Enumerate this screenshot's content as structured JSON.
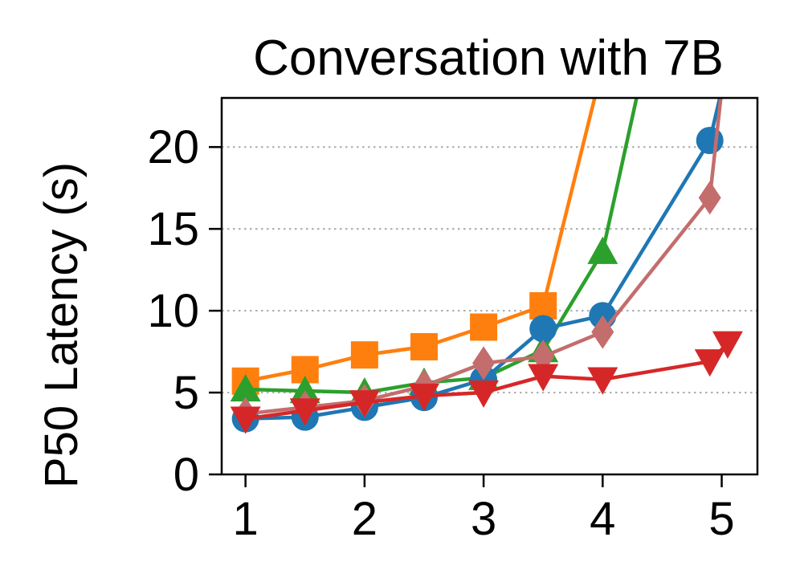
{
  "chart_data": {
    "type": "line",
    "title": "Conversation with 7B",
    "xlabel": "",
    "ylabel": "P50 Latency (s)",
    "xlim": [
      0.8,
      5.3
    ],
    "ylim": [
      0,
      23
    ],
    "xticks": [
      1,
      2,
      3,
      4,
      5
    ],
    "yticks": [
      0,
      5,
      10,
      15,
      20
    ],
    "grid": "horizontal-dotted",
    "series": [
      {
        "color": "#ff7f0e",
        "marker": "square",
        "points": [
          [
            1,
            5.7
          ],
          [
            1.5,
            6.4
          ],
          [
            2,
            7.3
          ],
          [
            2.5,
            7.8
          ],
          [
            3,
            9.0
          ],
          [
            3.5,
            10.3
          ],
          [
            3.95,
            23.5
          ]
        ]
      },
      {
        "color": "#2ca02c",
        "marker": "triangle-up",
        "points": [
          [
            1,
            5.2
          ],
          [
            1.5,
            5.1
          ],
          [
            2,
            5.0
          ],
          [
            2.5,
            5.6
          ],
          [
            3,
            5.9
          ],
          [
            3.5,
            7.6
          ],
          [
            4,
            13.6
          ],
          [
            4.3,
            23.5
          ]
        ]
      },
      {
        "color": "#1f77b4",
        "marker": "circle",
        "points": [
          [
            1,
            3.4
          ],
          [
            1.5,
            3.5
          ],
          [
            2,
            4.1
          ],
          [
            2.5,
            4.7
          ],
          [
            3,
            5.8
          ],
          [
            3.5,
            8.9
          ],
          [
            4,
            9.7
          ],
          [
            4.9,
            20.4
          ],
          [
            5.0,
            23.5
          ]
        ]
      },
      {
        "color": "#c46d6d",
        "marker": "thin-diamond",
        "points": [
          [
            1,
            3.7
          ],
          [
            1.5,
            4.1
          ],
          [
            2,
            4.5
          ],
          [
            2.5,
            5.4
          ],
          [
            3,
            6.8
          ],
          [
            3.5,
            7.2
          ],
          [
            4,
            8.7
          ],
          [
            4.9,
            16.9
          ],
          [
            5.0,
            23.5
          ]
        ]
      },
      {
        "color": "#d62728",
        "marker": "triangle-down",
        "points": [
          [
            1,
            3.4
          ],
          [
            1.5,
            3.9
          ],
          [
            2,
            4.4
          ],
          [
            2.5,
            4.8
          ],
          [
            3,
            5.0
          ],
          [
            3.5,
            6.0
          ],
          [
            4,
            5.8
          ],
          [
            4.9,
            6.9
          ],
          [
            5.05,
            8.0
          ]
        ]
      }
    ]
  }
}
